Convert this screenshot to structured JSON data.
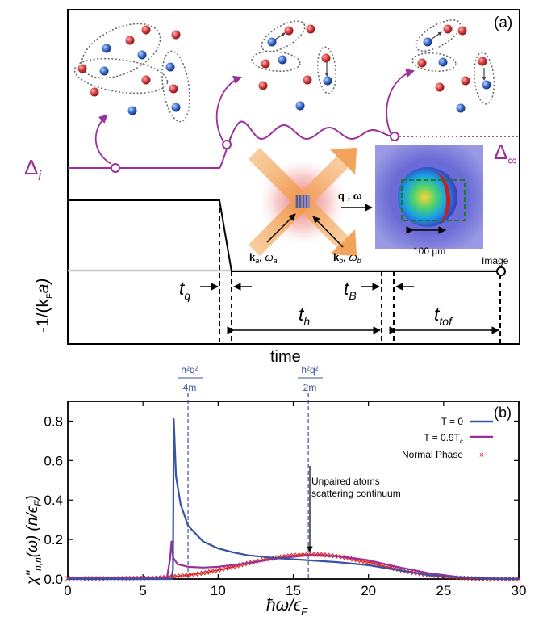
{
  "panel_a": {
    "label": "(a)",
    "delta_i": "Δ",
    "delta_i_sub": "i",
    "delta_inf": "Δ",
    "delta_inf_sub": "∞",
    "q_omega": "q , ω",
    "k_a": "k",
    "k_a_sub": "a",
    "omega_a": ", ω",
    "omega_a_sub": "a",
    "k_b": "k",
    "k_b_sub": "b",
    "omega_b": ", ω",
    "omega_b_sub": "b",
    "scale_bar": "100 µm",
    "image_label": "Image",
    "y_axis": "-1/(k",
    "y_axis_sub": "F",
    "y_axis_end": "a)",
    "t_q": "t",
    "t_q_sub": "q",
    "t_h": "t",
    "t_h_sub": "h",
    "t_B": "t",
    "t_B_sub": "B",
    "t_tof": "t",
    "t_tof_sub": "tof",
    "x_axis": "time",
    "colors": {
      "delta": "#9b2f9b",
      "atom_red": "#d94040",
      "atom_blue": "#3a6fd0"
    }
  },
  "panel_b": {
    "label": "(b)",
    "marker1_top": "ħ²q²",
    "marker1_bot": "4m",
    "marker2_top": "ħ²q²",
    "marker2_bot": "2m",
    "annotation_line1": "Unpaired atoms",
    "annotation_line2": "scattering continuum",
    "legend": [
      {
        "label": "T = 0",
        "color": "#3953a4"
      },
      {
        "label": "T = 0.9T",
        "sub": "c",
        "color": "#9b2f9b"
      },
      {
        "label": "Normal Phase",
        "color": "#e02020"
      }
    ],
    "xlabel": "ħω/ϵ",
    "xlabel_sub": "F",
    "ylabel": "χ\"",
    "ylabel_sub": "n,n",
    "ylabel_rest": "(ω) (n/ϵ",
    "ylabel_sub2": "F",
    "ylabel_end": ")"
  },
  "chart_data": {
    "type": "line",
    "xlabel": "ħω/ϵF",
    "ylabel": "χ\"n,n(ω) (n/ϵF)",
    "xlim": [
      0,
      30
    ],
    "ylim": [
      0,
      0.9
    ],
    "xticks": [
      "0",
      "5",
      "10",
      "15",
      "20",
      "25",
      "30"
    ],
    "yticks": [
      "0.0",
      "0.2",
      "0.4",
      "0.6",
      "0.8"
    ],
    "vlines": [
      8.0,
      16.0
    ],
    "series": [
      {
        "name": "T = 0",
        "color": "#3953a4",
        "x": [
          0,
          6.9,
          7.0,
          7.05,
          7.2,
          7.5,
          8,
          9,
          10,
          11,
          12,
          14,
          16,
          18,
          20,
          22,
          24,
          26,
          28,
          30
        ],
        "y": [
          0,
          0,
          0.05,
          0.81,
          0.52,
          0.38,
          0.27,
          0.19,
          0.155,
          0.135,
          0.12,
          0.105,
          0.095,
          0.085,
          0.07,
          0.045,
          0.02,
          0.007,
          0.002,
          0
        ]
      },
      {
        "name": "T = 0.9Tc",
        "color": "#9b2f9b",
        "x": [
          0,
          6.6,
          6.8,
          6.9,
          7.0,
          7.3,
          8,
          9,
          10,
          12,
          14,
          16,
          18,
          20,
          22,
          24,
          26,
          28,
          30
        ],
        "y": [
          0.005,
          0.008,
          0.1,
          0.19,
          0.11,
          0.075,
          0.062,
          0.058,
          0.062,
          0.08,
          0.105,
          0.12,
          0.115,
          0.095,
          0.06,
          0.03,
          0.01,
          0.003,
          0
        ]
      },
      {
        "name": "Normal Phase",
        "color": "#e02020",
        "marker": "x",
        "x": [
          0,
          2,
          4,
          6,
          7,
          8,
          9,
          10,
          11,
          12,
          13,
          14,
          15,
          16,
          17,
          18,
          19,
          20,
          21,
          22,
          23,
          24,
          25,
          26,
          27,
          28,
          29,
          30
        ],
        "y": [
          0.003,
          0.003,
          0.004,
          0.006,
          0.012,
          0.02,
          0.03,
          0.045,
          0.062,
          0.08,
          0.097,
          0.11,
          0.12,
          0.125,
          0.123,
          0.115,
          0.1,
          0.085,
          0.066,
          0.048,
          0.032,
          0.02,
          0.012,
          0.006,
          0.003,
          0.001,
          0.0005,
          0
        ]
      }
    ]
  }
}
